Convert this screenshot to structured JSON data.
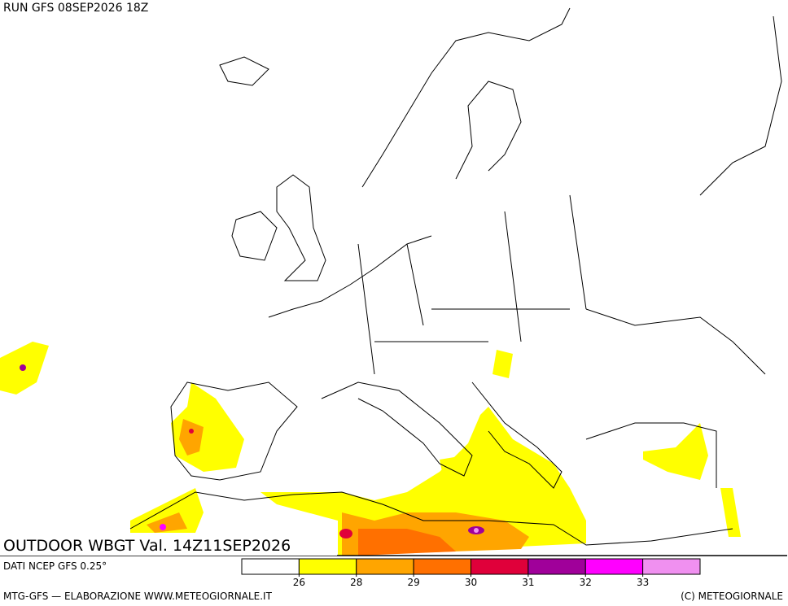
{
  "header": {
    "run": "RUN GFS 08SEP2026 18Z"
  },
  "map": {
    "title": "OUTDOOR WBGT Val. 14Z11SEP2026"
  },
  "footer": {
    "source": "DATI NCEP GFS 0.25°",
    "credit": "MTG-GFS — ELABORAZIONE WWW.METEOGIORNALE.IT",
    "copyright": "(C) METEOGIORNALE"
  },
  "legend": {
    "colors": [
      "#ffffff",
      "#ffff00",
      "#ffa500",
      "#ff7000",
      "#e0003a",
      "#a0009a",
      "#ff00ff",
      "#f090f0"
    ],
    "ticks": [
      26,
      28,
      29,
      30,
      31,
      32,
      33
    ]
  }
}
